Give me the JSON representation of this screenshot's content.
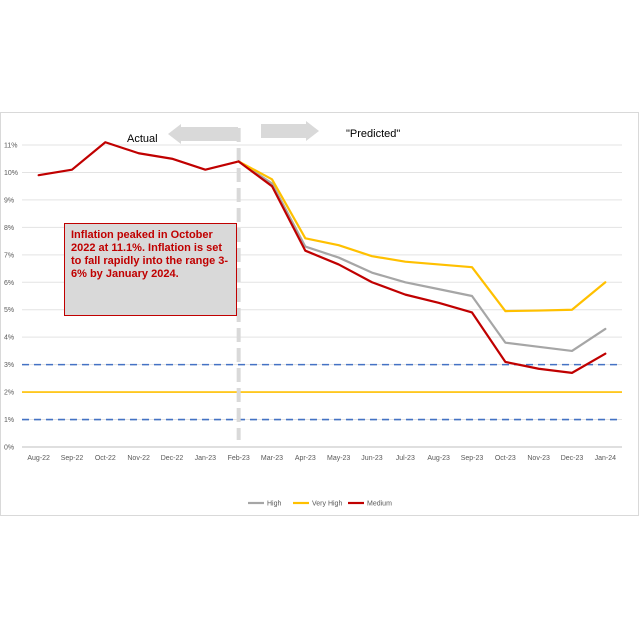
{
  "chart_data": {
    "type": "line",
    "categories": [
      "Aug-22",
      "Sep-22",
      "Oct-22",
      "Nov-22",
      "Dec-22",
      "Jan-23",
      "Feb-23",
      "Mar-23",
      "Apr-23",
      "May-23",
      "Jun-23",
      "Jul-23",
      "Aug-23",
      "Sep-23",
      "Oct-23",
      "Nov-23",
      "Dec-23",
      "Jan-24"
    ],
    "ylim": [
      0,
      11
    ],
    "yticks": [
      "0%",
      "1%",
      "2%",
      "3%",
      "4%",
      "5%",
      "6%",
      "7%",
      "8%",
      "9%",
      "10%",
      "11%"
    ],
    "grid": true,
    "legend_position": "bottom",
    "actual": {
      "color": "#c00000",
      "values": [
        9.9,
        10.1,
        11.1,
        10.7,
        10.5,
        10.1,
        10.4
      ]
    },
    "series": [
      {
        "name": "High",
        "color": "#a6a6a6",
        "values": [
          null,
          null,
          null,
          null,
          null,
          null,
          10.4,
          9.6,
          7.3,
          6.9,
          6.35,
          6.0,
          5.75,
          5.5,
          3.8,
          3.65,
          3.5,
          4.3
        ]
      },
      {
        "name": "Very High",
        "color": "#ffc000",
        "values": [
          null,
          null,
          null,
          null,
          null,
          null,
          10.4,
          9.75,
          7.6,
          7.35,
          6.95,
          6.75,
          6.65,
          6.55,
          4.95,
          4.97,
          5.0,
          6.0
        ]
      },
      {
        "name": "Medium",
        "color": "#c00000",
        "values": [
          null,
          null,
          null,
          null,
          null,
          null,
          10.4,
          9.5,
          7.15,
          6.65,
          6.0,
          5.55,
          5.25,
          4.9,
          3.1,
          2.85,
          2.7,
          3.4
        ]
      }
    ],
    "reference_lines": [
      {
        "value": 3,
        "style": "dashed",
        "color": "#4472c4"
      },
      {
        "value": 1,
        "style": "dashed",
        "color": "#4472c4"
      },
      {
        "value": 2,
        "style": "solid",
        "color": "#ffc000"
      }
    ],
    "divider_category": "Feb-23",
    "labels": {
      "actual": "Actual",
      "predicted": "\"Predicted\""
    },
    "annotation": "Inflation peaked in October 2022 at 11.1%. Inflation is set to fall rapidly into the range 3-6% by January 2024."
  }
}
